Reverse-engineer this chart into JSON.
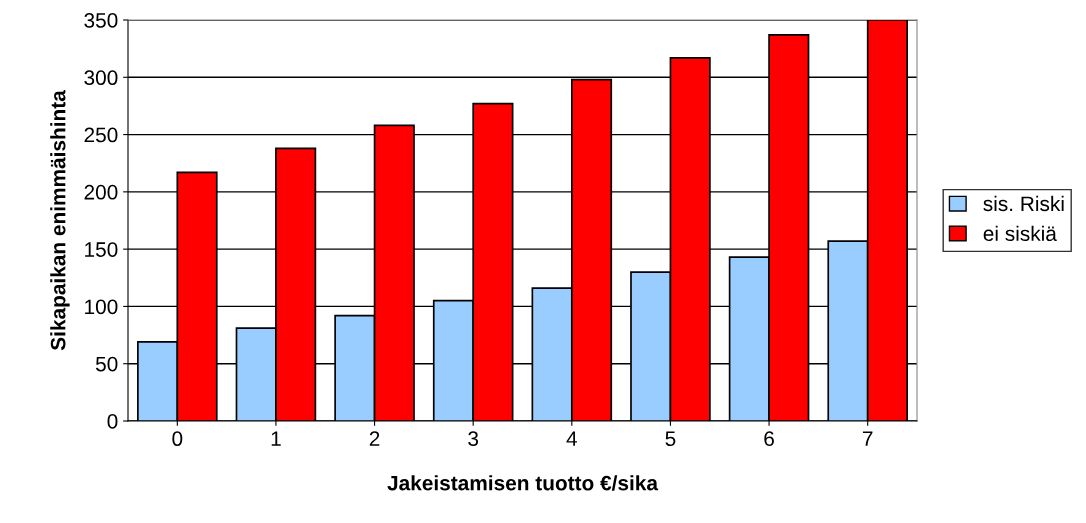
{
  "chart_data": {
    "type": "bar",
    "xlabel": "Jakeistamisen tuotto €/sika",
    "ylabel": "Sikapaikan enimmäishinta",
    "categories": [
      "0",
      "1",
      "2",
      "3",
      "4",
      "5",
      "6",
      "7"
    ],
    "series": [
      {
        "name": "sis. Riski",
        "color": "#99ccff",
        "values": [
          69,
          81,
          92,
          105,
          116,
          130,
          143,
          157
        ]
      },
      {
        "name": "ei siskiä",
        "color": "#ff0000",
        "values": [
          217,
          238,
          258,
          277,
          298,
          317,
          337,
          350
        ]
      }
    ],
    "ylim": [
      0,
      350
    ],
    "yticks": [
      0,
      50,
      100,
      150,
      200,
      250,
      300,
      350
    ],
    "grid": "y",
    "legend": "right"
  }
}
